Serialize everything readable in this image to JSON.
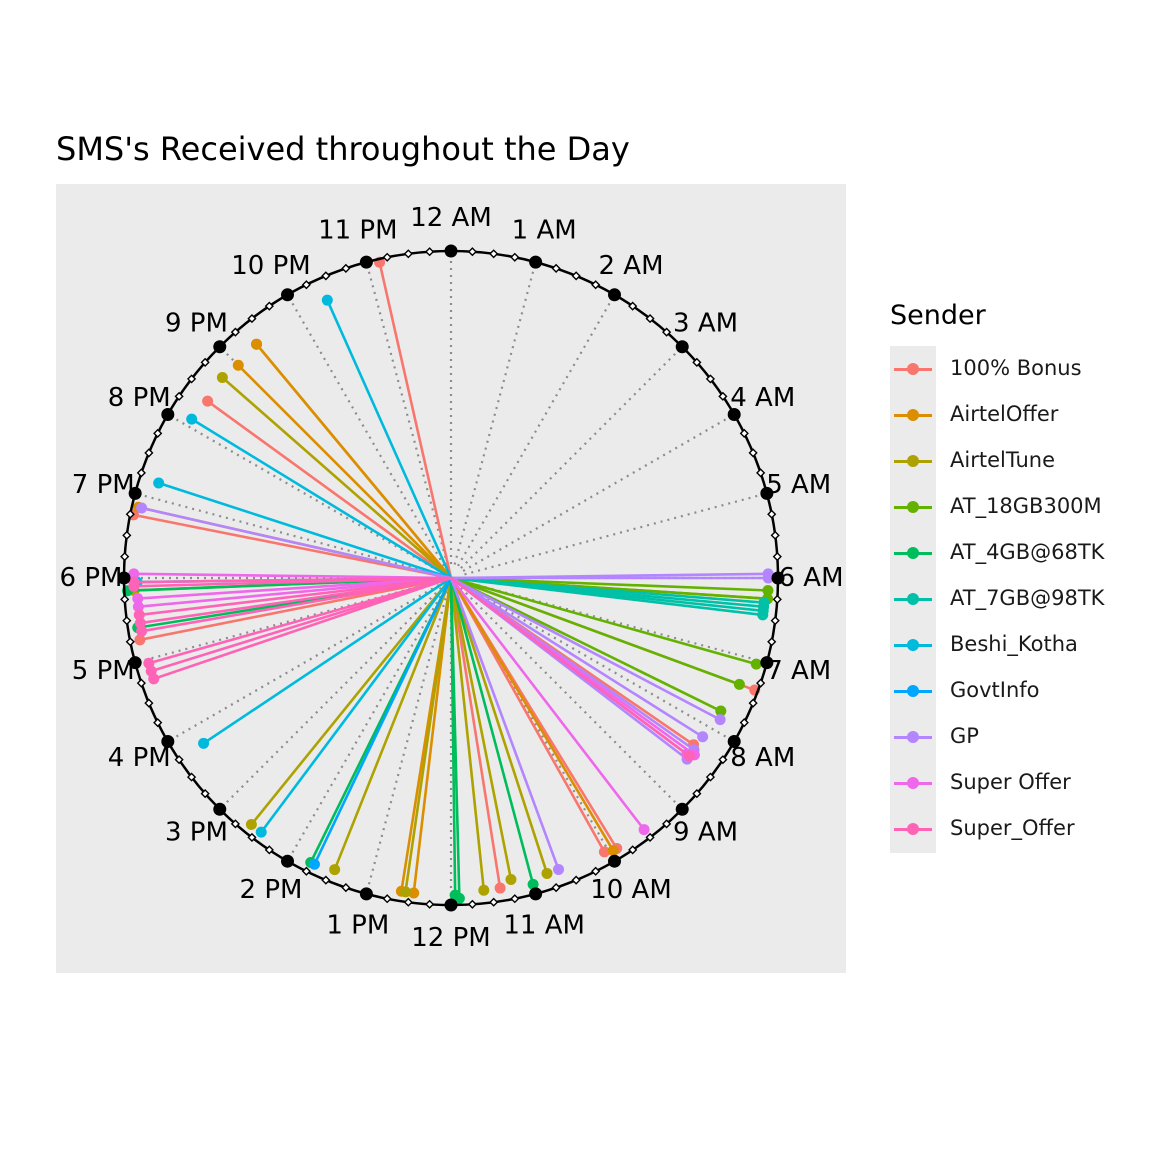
{
  "chart_data": {
    "type": "radial-line",
    "title": "SMS's Received throughout the Day",
    "hour_labels": [
      "12 AM",
      "1 AM",
      "2 AM",
      "3 AM",
      "4 AM",
      "5 AM",
      "6 AM",
      "7 AM",
      "8 AM",
      "9 AM",
      "10 AM",
      "11 AM",
      "12 PM",
      "1 PM",
      "2 PM",
      "3 PM",
      "4 PM",
      "5 PM",
      "6 PM",
      "7 PM",
      "8 PM",
      "9 PM",
      "10 PM",
      "11 PM"
    ],
    "legend_title": "Sender",
    "series": [
      {
        "name": "100% Bonus",
        "color": "#F8766D",
        "points": [
          [
            23.15,
            0.99
          ],
          [
            20.4,
            0.92
          ],
          [
            18.75,
            0.99
          ],
          [
            17.25,
            0.97
          ],
          [
            7.35,
            0.99
          ],
          [
            8.3,
            0.9
          ],
          [
            9.9,
            0.97
          ],
          [
            10.05,
            0.96
          ],
          [
            11.4,
            0.96
          ]
        ]
      },
      {
        "name": "AirtelOffer",
        "color": "#DB8E00",
        "points": [
          [
            21.35,
            0.93
          ],
          [
            21.35,
            0.93
          ],
          [
            21.0,
            0.92
          ],
          [
            18.85,
            0.98
          ],
          [
            12.6,
            0.97
          ],
          [
            12.45,
            0.97
          ],
          [
            9.95,
            0.97
          ]
        ]
      },
      {
        "name": "AirtelTune",
        "color": "#AEA200",
        "points": [
          [
            20.75,
            0.93
          ],
          [
            17.85,
            0.97
          ],
          [
            14.6,
            0.97
          ],
          [
            13.45,
            0.96
          ],
          [
            12.55,
            0.97
          ],
          [
            11.6,
            0.96
          ],
          [
            11.25,
            0.94
          ],
          [
            10.8,
            0.95
          ],
          [
            6.25,
            0.97
          ]
        ]
      },
      {
        "name": "AT_18GB300M",
        "color": "#64B200",
        "points": [
          [
            6.15,
            0.97
          ],
          [
            7.05,
            0.97
          ],
          [
            7.35,
            0.94
          ],
          [
            7.75,
            0.92
          ],
          [
            6.25,
            0.97
          ]
        ]
      },
      {
        "name": "AT_4GB@68TK",
        "color": "#00BD5C",
        "points": [
          [
            17.4,
            0.97
          ],
          [
            17.85,
            0.99
          ],
          [
            11.9,
            0.98
          ],
          [
            11.0,
            0.97
          ],
          [
            13.75,
            0.97
          ],
          [
            11.95,
            0.97
          ]
        ]
      },
      {
        "name": "AT_7GB@98TK",
        "color": "#00C1A7",
        "points": [
          [
            6.3,
            0.96
          ],
          [
            6.35,
            0.96
          ],
          [
            6.4,
            0.96
          ],
          [
            6.45,
            0.96
          ]
        ]
      },
      {
        "name": "Beshi_Kotha",
        "color": "#00BADE",
        "points": [
          [
            22.4,
            0.93
          ],
          [
            20.1,
            0.93
          ],
          [
            19.2,
            0.94
          ],
          [
            15.75,
            0.91
          ],
          [
            14.45,
            0.97
          ],
          [
            17.95,
            0.96
          ]
        ]
      },
      {
        "name": "GovtInfo",
        "color": "#00A6FF",
        "points": [
          [
            13.7,
            0.97
          ]
        ]
      },
      {
        "name": "GP",
        "color": "#B385FF",
        "points": [
          [
            18.85,
            0.97
          ],
          [
            6.0,
            0.97
          ],
          [
            5.95,
            0.97
          ],
          [
            7.85,
            0.93
          ],
          [
            8.15,
            0.91
          ],
          [
            8.35,
            0.91
          ],
          [
            8.5,
            0.91
          ],
          [
            10.65,
            0.95
          ]
        ]
      },
      {
        "name": "Super Offer",
        "color": "#EF67EB",
        "points": [
          [
            18.05,
            0.97
          ],
          [
            17.65,
            0.96
          ],
          [
            17.75,
            0.96
          ],
          [
            8.4,
            0.92
          ],
          [
            8.45,
            0.9
          ],
          [
            9.5,
            0.97
          ]
        ]
      },
      {
        "name": "Super_Offer",
        "color": "#FF63B6",
        "points": [
          [
            17.9,
            0.97
          ],
          [
            17.95,
            0.97
          ],
          [
            17.55,
            0.96
          ],
          [
            17.45,
            0.96
          ],
          [
            17.35,
            0.96
          ],
          [
            16.75,
            0.96
          ],
          [
            16.85,
            0.96
          ],
          [
            16.95,
            0.96
          ],
          [
            8.45,
            0.91
          ]
        ]
      }
    ]
  }
}
